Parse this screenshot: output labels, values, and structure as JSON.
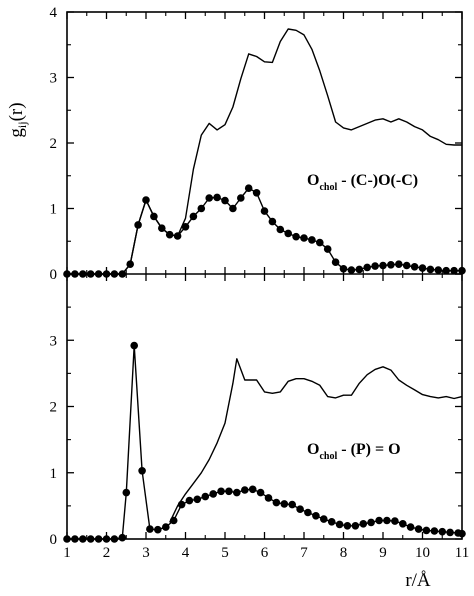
{
  "chart_data": {
    "type": "line",
    "ylabel_main": "g",
    "ylabel_sub": "ij",
    "ylabel_tail": "(r)",
    "xlabel": "r/Å",
    "x_ticks": [
      "1",
      "2",
      "3",
      "4",
      "5",
      "6",
      "7",
      "8",
      "9",
      "10",
      "11"
    ],
    "xlim": [
      1,
      11
    ],
    "panels": [
      {
        "ylim": [
          0,
          4
        ],
        "y_ticks": [
          "0",
          "1",
          "2",
          "3",
          "4"
        ],
        "annotation": {
          "main": "O",
          "sub": "chol",
          "rest": " - (C-)O(-C)"
        },
        "series": [
          {
            "style": "line",
            "points": [
              [
                1,
                0
              ],
              [
                1.2,
                0
              ],
              [
                1.4,
                0
              ],
              [
                1.6,
                0
              ],
              [
                1.8,
                0
              ],
              [
                2.0,
                0
              ],
              [
                2.2,
                0
              ],
              [
                2.4,
                0
              ],
              [
                2.6,
                0.15
              ],
              [
                2.8,
                0.75
              ],
              [
                3.0,
                1.13
              ],
              [
                3.2,
                0.88
              ],
              [
                3.4,
                0.7
              ],
              [
                3.6,
                0.6
              ],
              [
                3.8,
                0.58
              ],
              [
                4.0,
                0.85
              ],
              [
                4.2,
                1.6
              ],
              [
                4.4,
                2.12
              ],
              [
                4.6,
                2.3
              ],
              [
                4.8,
                2.2
              ],
              [
                5.0,
                2.28
              ],
              [
                5.2,
                2.55
              ],
              [
                5.4,
                2.98
              ],
              [
                5.6,
                3.36
              ],
              [
                5.8,
                3.32
              ],
              [
                6.0,
                3.24
              ],
              [
                6.2,
                3.23
              ],
              [
                6.4,
                3.55
              ],
              [
                6.6,
                3.74
              ],
              [
                6.8,
                3.72
              ],
              [
                7.0,
                3.65
              ],
              [
                7.2,
                3.43
              ],
              [
                7.4,
                3.1
              ],
              [
                7.6,
                2.72
              ],
              [
                7.8,
                2.32
              ],
              [
                8.0,
                2.23
              ],
              [
                8.2,
                2.2
              ],
              [
                8.4,
                2.25
              ],
              [
                8.6,
                2.3
              ],
              [
                8.8,
                2.35
              ],
              [
                9.0,
                2.37
              ],
              [
                9.2,
                2.32
              ],
              [
                9.4,
                2.37
              ],
              [
                9.6,
                2.32
              ],
              [
                9.8,
                2.25
              ],
              [
                10.0,
                2.2
              ],
              [
                10.2,
                2.1
              ],
              [
                10.4,
                2.05
              ],
              [
                10.6,
                1.98
              ],
              [
                10.8,
                1.97
              ],
              [
                11.0,
                1.97
              ]
            ]
          },
          {
            "style": "dots",
            "points": [
              [
                1.0,
                0
              ],
              [
                1.2,
                0
              ],
              [
                1.4,
                0
              ],
              [
                1.6,
                0
              ],
              [
                1.8,
                0
              ],
              [
                2.0,
                0
              ],
              [
                2.2,
                0
              ],
              [
                2.4,
                0
              ],
              [
                2.6,
                0.15
              ],
              [
                2.8,
                0.75
              ],
              [
                3.0,
                1.13
              ],
              [
                3.2,
                0.88
              ],
              [
                3.4,
                0.7
              ],
              [
                3.6,
                0.6
              ],
              [
                3.8,
                0.58
              ],
              [
                4.0,
                0.72
              ],
              [
                4.2,
                0.88
              ],
              [
                4.4,
                1.0
              ],
              [
                4.6,
                1.16
              ],
              [
                4.8,
                1.17
              ],
              [
                5.0,
                1.12
              ],
              [
                5.2,
                1.0
              ],
              [
                5.4,
                1.16
              ],
              [
                5.6,
                1.31
              ],
              [
                5.8,
                1.24
              ],
              [
                6.0,
                0.96
              ],
              [
                6.2,
                0.8
              ],
              [
                6.4,
                0.68
              ],
              [
                6.6,
                0.62
              ],
              [
                6.8,
                0.57
              ],
              [
                7.0,
                0.55
              ],
              [
                7.2,
                0.52
              ],
              [
                7.4,
                0.48
              ],
              [
                7.6,
                0.38
              ],
              [
                7.8,
                0.18
              ],
              [
                8.0,
                0.08
              ],
              [
                8.2,
                0.06
              ],
              [
                8.4,
                0.07
              ],
              [
                8.6,
                0.1
              ],
              [
                8.8,
                0.12
              ],
              [
                9.0,
                0.13
              ],
              [
                9.2,
                0.14
              ],
              [
                9.4,
                0.15
              ],
              [
                9.6,
                0.13
              ],
              [
                9.8,
                0.11
              ],
              [
                10.0,
                0.09
              ],
              [
                10.2,
                0.07
              ],
              [
                10.4,
                0.06
              ],
              [
                10.6,
                0.05
              ],
              [
                10.8,
                0.05
              ],
              [
                11.0,
                0.05
              ]
            ]
          }
        ]
      },
      {
        "ylim": [
          0,
          4
        ],
        "y_ticks": [
          "0",
          "1",
          "2",
          "3",
          ""
        ],
        "annotation": {
          "main": "O",
          "sub": "chol",
          "rest": " - (P) = O"
        },
        "series": [
          {
            "style": "line",
            "points": [
              [
                3.6,
                0.25
              ],
              [
                3.8,
                0.5
              ],
              [
                4.0,
                0.68
              ],
              [
                4.2,
                0.84
              ],
              [
                4.4,
                1.0
              ],
              [
                4.6,
                1.2
              ],
              [
                4.8,
                1.45
              ],
              [
                5.0,
                1.75
              ],
              [
                5.2,
                2.35
              ],
              [
                5.3,
                2.72
              ],
              [
                5.5,
                2.4
              ],
              [
                5.8,
                2.4
              ],
              [
                6.0,
                2.22
              ],
              [
                6.2,
                2.2
              ],
              [
                6.4,
                2.22
              ],
              [
                6.6,
                2.38
              ],
              [
                6.8,
                2.42
              ],
              [
                7.0,
                2.42
              ],
              [
                7.2,
                2.38
              ],
              [
                7.4,
                2.32
              ],
              [
                7.6,
                2.15
              ],
              [
                7.8,
                2.13
              ],
              [
                8.0,
                2.17
              ],
              [
                8.2,
                2.17
              ],
              [
                8.4,
                2.35
              ],
              [
                8.6,
                2.48
              ],
              [
                8.8,
                2.56
              ],
              [
                9.0,
                2.6
              ],
              [
                9.2,
                2.55
              ],
              [
                9.4,
                2.4
              ],
              [
                9.6,
                2.32
              ],
              [
                9.8,
                2.25
              ],
              [
                10.0,
                2.18
              ],
              [
                10.2,
                2.15
              ],
              [
                10.4,
                2.13
              ],
              [
                10.6,
                2.15
              ],
              [
                10.8,
                2.12
              ],
              [
                11.0,
                2.15
              ]
            ]
          },
          {
            "style": "dots",
            "points": [
              [
                1.0,
                0
              ],
              [
                1.2,
                0
              ],
              [
                1.4,
                0
              ],
              [
                1.6,
                0
              ],
              [
                1.8,
                0
              ],
              [
                2.0,
                0
              ],
              [
                2.2,
                0
              ],
              [
                2.4,
                0.02
              ],
              [
                2.5,
                0.7
              ],
              [
                2.7,
                2.92
              ],
              [
                2.9,
                1.03
              ],
              [
                3.1,
                0.15
              ],
              [
                3.3,
                0.14
              ],
              [
                3.5,
                0.18
              ],
              [
                3.7,
                0.28
              ],
              [
                3.9,
                0.52
              ],
              [
                4.1,
                0.58
              ],
              [
                4.3,
                0.6
              ],
              [
                4.5,
                0.64
              ],
              [
                4.7,
                0.68
              ],
              [
                4.9,
                0.72
              ],
              [
                5.1,
                0.72
              ],
              [
                5.3,
                0.7
              ],
              [
                5.5,
                0.74
              ],
              [
                5.7,
                0.75
              ],
              [
                5.9,
                0.7
              ],
              [
                6.1,
                0.62
              ],
              [
                6.3,
                0.55
              ],
              [
                6.5,
                0.53
              ],
              [
                6.7,
                0.52
              ],
              [
                6.9,
                0.45
              ],
              [
                7.1,
                0.4
              ],
              [
                7.3,
                0.35
              ],
              [
                7.5,
                0.3
              ],
              [
                7.7,
                0.26
              ],
              [
                7.9,
                0.22
              ],
              [
                8.1,
                0.2
              ],
              [
                8.3,
                0.2
              ],
              [
                8.5,
                0.23
              ],
              [
                8.7,
                0.25
              ],
              [
                8.9,
                0.28
              ],
              [
                9.1,
                0.28
              ],
              [
                9.3,
                0.27
              ],
              [
                9.5,
                0.23
              ],
              [
                9.7,
                0.18
              ],
              [
                9.9,
                0.15
              ],
              [
                10.1,
                0.13
              ],
              [
                10.3,
                0.12
              ],
              [
                10.5,
                0.11
              ],
              [
                10.7,
                0.1
              ],
              [
                10.9,
                0.09
              ],
              [
                11.0,
                0.08
              ]
            ]
          }
        ]
      }
    ]
  }
}
